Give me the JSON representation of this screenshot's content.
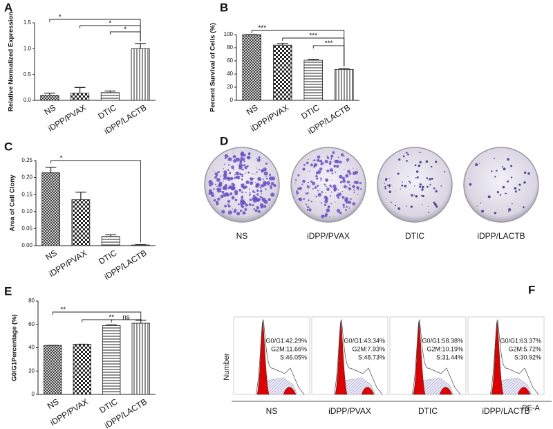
{
  "chart_data": [
    {
      "type": "bar",
      "panel_label": "A",
      "y_label": "Relative Normalized Expression",
      "categories": [
        "NS",
        "iDPP/PVAX",
        "DTIC",
        "iDPP/LACTB"
      ],
      "values": [
        0.1,
        0.14,
        0.15,
        1.0
      ],
      "errors": [
        0.04,
        0.11,
        0.03,
        0.1
      ],
      "ylim": [
        0,
        1.5
      ],
      "yticks": [
        {
          "value": 0,
          "label": "0.0"
        },
        0.5,
        {
          "value": 1,
          "label": "1.0"
        },
        1.5
      ],
      "color": "#222222",
      "annotations": [
        "*",
        "*",
        "*"
      ]
    },
    {
      "type": "bar",
      "panel_label": "B",
      "y_label": "Percent Survival of Cells (%)",
      "categories": [
        "NS",
        "iDPP/PVAX",
        "DTIC",
        "iDPP/LACTB"
      ],
      "values": [
        100,
        84,
        61,
        47
      ],
      "errors": [
        0,
        2.5,
        1.5,
        1.5
      ],
      "ylim": [
        0,
        100
      ],
      "yticks": [
        0,
        20,
        40,
        60,
        80,
        100
      ],
      "color": "#222222",
      "annotations": [
        "***",
        "***",
        "***"
      ]
    },
    {
      "type": "bar",
      "panel_label": "C",
      "y_label": "Area of Cell Clony",
      "categories": [
        "NS",
        "iDPP/PVAX",
        "DTIC",
        "iDPP/LACTB"
      ],
      "values": [
        0.214,
        0.135,
        0.027,
        0.002
      ],
      "errors": [
        0.016,
        0.022,
        0.005,
        0.001
      ],
      "ylim": [
        0,
        0.25
      ],
      "yticks": [
        {
          "value": 0,
          "label": "0.00"
        },
        0.05,
        {
          "value": 0.1,
          "label": "0.10"
        },
        0.15,
        {
          "value": 0.2,
          "label": "0.20"
        },
        0.25
      ],
      "color": "#222222",
      "annotations": [
        "*"
      ]
    },
    {
      "type": "bar",
      "panel_label": "E",
      "y_label": "G0/G1Percentage (%)",
      "categories": [
        "NS",
        "iDPP/PVAX",
        "DTIC",
        "iDPP/LACTB"
      ],
      "values": [
        42,
        43,
        59,
        61
      ],
      "errors": [
        0,
        0,
        0.5,
        2.5
      ],
      "ylim": [
        0,
        80
      ],
      "yticks": [
        0,
        20,
        40,
        60,
        80
      ],
      "color": "#222222",
      "annotations": [
        "**",
        "**",
        "ns"
      ]
    }
  ],
  "colony_images": {
    "panel_label": "D",
    "labels": [
      "NS",
      "iDPP/PVAX",
      "DTIC",
      "iDPP/LACTB"
    ]
  },
  "cell_cycle": {
    "panel_label": "F",
    "y_label": "Number",
    "x_label": "PE-A",
    "samples": [
      {
        "name": "NS",
        "lines": [
          "G0/G1:42.29%",
          "G2M:11.66%",
          "S:46.05%"
        ]
      },
      {
        "name": "iDPP/PVAX",
        "lines": [
          "G0/G1:43.34%",
          "G2M:7.93%",
          "S:48.73%"
        ]
      },
      {
        "name": "DTIC",
        "lines": [
          "G0/G1:58.38%",
          "G2M:10.19%",
          "S:31.44%"
        ]
      },
      {
        "name": "iDPP/LACTB",
        "lines": [
          "G0/G1:63.37%",
          "G2M:5.72%",
          "S:30.92%"
        ]
      }
    ]
  }
}
